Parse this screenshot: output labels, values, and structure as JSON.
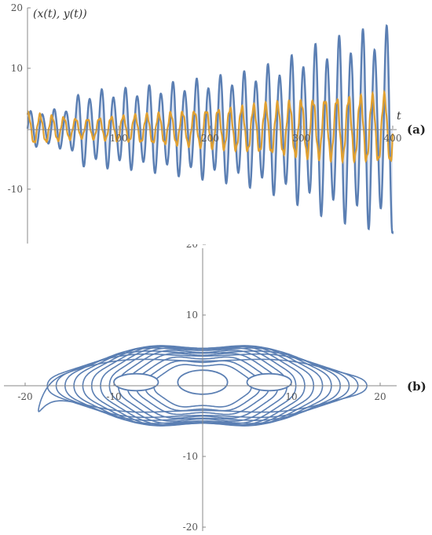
{
  "chart_data": [
    {
      "type": "line",
      "panel_label": "(a)",
      "ylabel": "(x(t), y(t))",
      "xlabel": "t",
      "xlim": [
        0,
        400
      ],
      "ylim": [
        -19,
        20
      ],
      "x_ticks": [
        100,
        200,
        300,
        400
      ],
      "y_ticks": [
        20,
        10,
        -10
      ],
      "grid": false,
      "colors": {
        "x": "#5b7fb3",
        "y": "#e0a030",
        "fill": "#dfe6f3"
      },
      "series": [
        {
          "key": "x",
          "envelope_t": [
            0,
            40,
            60,
            80,
            120,
            200,
            240,
            280,
            320,
            360,
            400
          ],
          "envelope_amplitude": [
            3,
            3.5,
            6.5,
            6.8,
            7.2,
            9,
            10,
            12,
            15,
            17,
            18
          ],
          "period": 13
        },
        {
          "key": "y",
          "envelope_t": [
            0,
            60,
            100,
            200,
            300,
            400
          ],
          "envelope_amplitude": [
            2.5,
            1.5,
            2,
            3,
            4.5,
            5.5
          ],
          "period": 13
        }
      ]
    },
    {
      "type": "contour",
      "panel_label": "(b)",
      "xlim": [
        -22,
        22
      ],
      "ylim": [
        -20,
        20
      ],
      "x_ticks": [
        -20,
        -10,
        10,
        20
      ],
      "y_ticks": [
        20,
        10,
        -10,
        -20
      ],
      "grid": false,
      "color": "#5b7fb3",
      "curves": [
        {
          "a": 18.5,
          "b": 3.5
        },
        {
          "a": 17.5,
          "b": 4.2
        },
        {
          "a": 16.5,
          "b": 4.6
        },
        {
          "a": 15.5,
          "b": 5.0
        },
        {
          "a": 14.5,
          "b": 5.2
        },
        {
          "a": 13.5,
          "b": 5.3
        },
        {
          "a": 12.5,
          "b": 5.3
        },
        {
          "a": 11.5,
          "b": 5.2
        },
        {
          "a": 10.5,
          "b": 5.0
        },
        {
          "a": 9.5,
          "b": 4.7
        },
        {
          "a": 8.5,
          "b": 4.3
        },
        {
          "a": 7.5,
          "b": 3.8
        },
        {
          "a": 6.5,
          "b": 3.3
        },
        {
          "a": 5.5,
          "b": 2.8
        }
      ],
      "holes": [
        {
          "x": -7.5,
          "y": 0.5,
          "rx": 2.5,
          "ry": 1.2
        },
        {
          "x": 0,
          "y": 0.5,
          "rx": 2.8,
          "ry": 1.7
        },
        {
          "x": 7.5,
          "y": 0.5,
          "rx": 2.5,
          "ry": 1.2
        }
      ]
    }
  ]
}
